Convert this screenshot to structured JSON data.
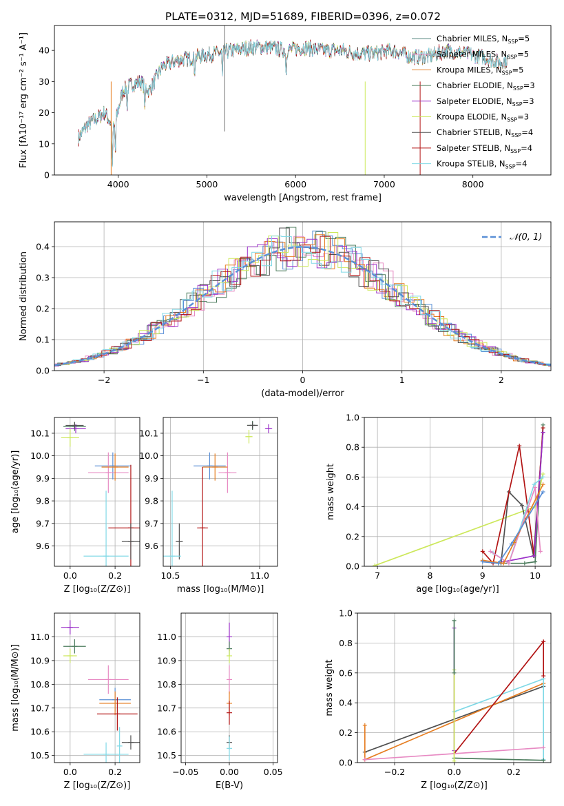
{
  "figure": {
    "title": "PLATE=0312, MJD=51689, FIBERID=0396, z=0.072"
  },
  "chart_data": [
    {
      "id": "spectrum",
      "type": "line",
      "title": "PLATE=0312, MJD=51689, FIBERID=0396, z=0.072",
      "xlabel": "wavelength [Angstrom, rest frame]",
      "ylabel": "Flux [fλ10⁻¹⁷ erg cm⁻² s⁻¹ A⁻¹]",
      "xlim": [
        3280,
        8880
      ],
      "ylim": [
        0,
        48
      ],
      "xticks": [
        4000,
        5000,
        6000,
        7000,
        8000
      ],
      "yticks": [
        0,
        10,
        20,
        30,
        40
      ],
      "grid": false,
      "legend_position": "upper-right",
      "continuum": {
        "x": [
          3550,
          3650,
          3750,
          3850,
          3950,
          4050,
          4150,
          4250,
          4350,
          4500,
          4700,
          4900,
          5100,
          5300,
          5500,
          5700,
          5900,
          6100,
          6300,
          6500,
          6700,
          6900,
          7100,
          7300,
          7500,
          7700,
          7900,
          8100,
          8300,
          8400
        ],
        "y": [
          12,
          16,
          18,
          20,
          15,
          27,
          29,
          30,
          27,
          35,
          37,
          38,
          39,
          40,
          41,
          41,
          40,
          41,
          40,
          40,
          39,
          39,
          40,
          38,
          38,
          40,
          39,
          38,
          36,
          37
        ]
      },
      "absorption_lines": [
        {
          "x": 3933,
          "depth": 15
        },
        {
          "x": 3968,
          "depth": 11
        },
        {
          "x": 4101,
          "depth": 7
        },
        {
          "x": 4300,
          "depth": 9
        },
        {
          "x": 4861,
          "depth": 5
        },
        {
          "x": 5175,
          "depth": 8
        },
        {
          "x": 5893,
          "depth": 8
        }
      ],
      "series": [
        {
          "name": "Chabrier MILES",
          "nssp": "5",
          "color": "#5a8a82"
        },
        {
          "name": "Salpeter MILES",
          "nssp": "5",
          "color": "#e78ac3"
        },
        {
          "name": "Kroupa MILES",
          "nssp": "5",
          "color": "#e67e22"
        },
        {
          "name": "Chabrier ELODIE",
          "nssp": "3",
          "color": "#4d7d5e"
        },
        {
          "name": "Salpeter ELODIE",
          "nssp": "3",
          "color": "#9b30c9"
        },
        {
          "name": "Kroupa ELODIE",
          "nssp": "3",
          "color": "#cde85c"
        },
        {
          "name": "Chabrier STELIB",
          "nssp": "4",
          "color": "#505050"
        },
        {
          "name": "Salpeter STELIB",
          "nssp": "4",
          "color": "#b21414"
        },
        {
          "name": "Kroupa STELIB",
          "nssp": "4",
          "color": "#80d9e6"
        }
      ]
    },
    {
      "id": "residuals",
      "type": "line",
      "xlabel": "(data-model)/error",
      "ylabel": "Normed distribution",
      "xlim": [
        -2.5,
        2.5
      ],
      "ylim": [
        0,
        0.48
      ],
      "xticks": [
        -2,
        -1,
        0,
        1,
        2
      ],
      "yticks": [
        0.0,
        0.1,
        0.2,
        0.3,
        0.4
      ],
      "grid": true,
      "legend_position": "upper-right",
      "reference": {
        "name": "𝒩(0, 1)",
        "color": "#5a8fd6"
      },
      "colors": [
        "#5a8fd6",
        "#e78ac3",
        "#e67e22",
        "#4d7d5e",
        "#9b30c9",
        "#cde85c",
        "#505050",
        "#b21414",
        "#80d9e6"
      ]
    },
    {
      "id": "age-vs-z",
      "type": "scatter",
      "xlabel": "Z [log₁₀(Z/Z⊙)]",
      "ylabel": "age  [log₁₀(age/yr)]",
      "xlim": [
        -0.07,
        0.31
      ],
      "ylim": [
        9.51,
        10.17
      ],
      "xticks": [
        0.0,
        0.2
      ],
      "yticks": [
        9.6,
        9.7,
        9.8,
        9.9,
        10.0,
        10.1
      ],
      "grid": true,
      "points": [
        {
          "x": 0.02,
          "y": 10.13,
          "dx": 0.05,
          "dy": 0.02,
          "color": "#4d7d5e"
        },
        {
          "x": 0.025,
          "y": 10.12,
          "dx": 0.045,
          "dy": 0.02,
          "color": "#9b30c9"
        },
        {
          "x": 0.0,
          "y": 10.08,
          "dx": 0.04,
          "dy": 0.04,
          "color": "#cde85c"
        },
        {
          "x": 0.02,
          "y": 10.135,
          "dx": 0.04,
          "dy": 0.015,
          "color": "#505050"
        },
        {
          "x": 0.19,
          "y": 9.955,
          "dx": 0.08,
          "dy": 0.06,
          "color": "#5a8fd6"
        },
        {
          "x": 0.17,
          "y": 9.925,
          "dx": 0.09,
          "dy": 0.09,
          "color": "#e78ac3"
        },
        {
          "x": 0.2,
          "y": 9.95,
          "dx": 0.06,
          "dy": 0.06,
          "color": "#e67e22"
        },
        {
          "x": 0.27,
          "y": 9.68,
          "dx": 0.1,
          "dy": 0.28,
          "color": "#b21414"
        },
        {
          "x": 0.27,
          "y": 9.62,
          "dx": 0.04,
          "dy": 0.08,
          "color": "#505050"
        },
        {
          "x": 0.16,
          "y": 9.555,
          "dx": 0.1,
          "dy": 0.29,
          "color": "#80d9e6"
        }
      ]
    },
    {
      "id": "age-vs-mass",
      "type": "scatter",
      "xlabel": "mass [log₁₀(M/M⊙)]",
      "xlim": [
        10.46,
        11.1
      ],
      "ylim": [
        9.51,
        10.17
      ],
      "xticks": [
        10.5,
        11.0
      ],
      "yticks": [
        9.6,
        9.7,
        9.8,
        9.9,
        10.0,
        10.1
      ],
      "grid": true,
      "points": [
        {
          "x": 10.96,
          "y": 10.135,
          "dx": 0.03,
          "dy": 0.02,
          "color": "#4d7d5e"
        },
        {
          "x": 11.05,
          "y": 10.12,
          "dx": 0.02,
          "dy": 0.02,
          "color": "#9b30c9"
        },
        {
          "x": 10.94,
          "y": 10.085,
          "dx": 0.02,
          "dy": 0.03,
          "color": "#cde85c"
        },
        {
          "x": 10.96,
          "y": 10.135,
          "dx": 0.03,
          "dy": 0.015,
          "color": "#505050"
        },
        {
          "x": 10.72,
          "y": 9.955,
          "dx": 0.09,
          "dy": 0.06,
          "color": "#5a8fd6"
        },
        {
          "x": 10.82,
          "y": 9.925,
          "dx": 0.05,
          "dy": 0.09,
          "color": "#e78ac3"
        },
        {
          "x": 10.75,
          "y": 9.95,
          "dx": 0.07,
          "dy": 0.06,
          "color": "#e67e22"
        },
        {
          "x": 10.68,
          "y": 9.68,
          "dx": 0.03,
          "dy": 0.27,
          "color": "#b21414"
        },
        {
          "x": 10.55,
          "y": 9.62,
          "dx": 0.02,
          "dy": 0.08,
          "color": "#505050"
        },
        {
          "x": 10.51,
          "y": 9.555,
          "dx": 0.05,
          "dy": 0.29,
          "color": "#80d9e6"
        }
      ]
    },
    {
      "id": "mass-weight-vs-age",
      "type": "line",
      "xlabel": "age  [log₁₀(age/yr)]",
      "ylabel": "mass weight",
      "xlim": [
        6.75,
        10.3
      ],
      "ylim": [
        0,
        1.0
      ],
      "xticks": [
        7,
        8,
        9,
        10
      ],
      "yticks": [
        0.0,
        0.2,
        0.4,
        0.6,
        0.8,
        1.0
      ],
      "grid": true,
      "series": [
        {
          "color": "#cde85c",
          "points": [
            [
              6.95,
              0.005
            ],
            [
              10.0,
              0.4
            ],
            [
              10.15,
              0.62
            ]
          ]
        },
        {
          "color": "#4d7d5e",
          "points": [
            [
              9.3,
              0.02
            ],
            [
              9.8,
              0.02
            ],
            [
              10.0,
              0.03
            ],
            [
              10.15,
              0.95
            ]
          ]
        },
        {
          "color": "#505050",
          "points": [
            [
              9.35,
              0.02
            ],
            [
              9.5,
              0.5
            ],
            [
              9.75,
              0.41
            ],
            [
              9.97,
              0.07
            ],
            [
              10.15,
              0.9
            ]
          ]
        },
        {
          "color": "#b21414",
          "points": [
            [
              9.0,
              0.1
            ],
            [
              9.2,
              0.02
            ],
            [
              9.7,
              0.81
            ],
            [
              9.98,
              0.07
            ],
            [
              10.15,
              0.93
            ]
          ]
        },
        {
          "color": "#9b30c9",
          "points": [
            [
              9.4,
              0.03
            ],
            [
              9.98,
              0.07
            ],
            [
              10.15,
              0.9
            ]
          ]
        },
        {
          "color": "#80d9e6",
          "points": [
            [
              9.2,
              0.09
            ],
            [
              9.5,
              0.02
            ],
            [
              9.98,
              0.55
            ],
            [
              10.15,
              0.6
            ]
          ]
        },
        {
          "color": "#e78ac3",
          "points": [
            [
              9.15,
              0.1
            ],
            [
              9.5,
              0.02
            ],
            [
              10.0,
              0.53
            ],
            [
              10.1,
              0.1
            ]
          ]
        },
        {
          "color": "#e67e22",
          "points": [
            [
              9.0,
              0.04
            ],
            [
              9.4,
              0.02
            ],
            [
              9.6,
              0.16
            ],
            [
              10.15,
              0.55
            ]
          ]
        },
        {
          "color": "#5a8fd6",
          "points": [
            [
              9.0,
              0.03
            ],
            [
              9.3,
              0.02
            ],
            [
              9.55,
              0.15
            ],
            [
              10.15,
              0.5
            ]
          ]
        }
      ]
    },
    {
      "id": "mass-vs-z",
      "type": "scatter",
      "xlabel": "Z [log₁₀(Z/Z⊙)]",
      "ylabel": "mass [log₁₀(M/M⊙)]",
      "xlim": [
        -0.07,
        0.31
      ],
      "ylim": [
        10.47,
        11.1
      ],
      "xticks": [
        0.0,
        0.2
      ],
      "yticks": [
        10.5,
        10.6,
        10.7,
        10.8,
        10.9,
        11.0
      ],
      "grid": true,
      "points": [
        {
          "x": 0.0,
          "y": 11.04,
          "dx": 0.04,
          "dy": 0.03,
          "color": "#9b30c9"
        },
        {
          "x": 0.02,
          "y": 10.96,
          "dx": 0.05,
          "dy": 0.03,
          "color": "#4d7d5e"
        },
        {
          "x": 0.0,
          "y": 10.92,
          "dx": 0.03,
          "dy": 0.03,
          "color": "#cde85c"
        },
        {
          "x": 0.17,
          "y": 10.82,
          "dx": 0.09,
          "dy": 0.06,
          "color": "#e78ac3"
        },
        {
          "x": 0.2,
          "y": 10.735,
          "dx": 0.07,
          "dy": 0.05,
          "color": "#5a8fd6"
        },
        {
          "x": 0.2,
          "y": 10.72,
          "dx": 0.07,
          "dy": 0.05,
          "color": "#e67e22"
        },
        {
          "x": 0.21,
          "y": 10.675,
          "dx": 0.09,
          "dy": 0.07,
          "color": "#b21414"
        },
        {
          "x": 0.27,
          "y": 10.555,
          "dx": 0.04,
          "dy": 0.03,
          "color": "#505050"
        },
        {
          "x": 0.16,
          "y": 10.505,
          "dx": 0.1,
          "dy": 0.05,
          "color": "#80d9e6"
        },
        {
          "x": 0.22,
          "y": 10.54,
          "dx": 0.005,
          "dy": 0.08,
          "color": "#80d9e6"
        }
      ]
    },
    {
      "id": "mass-vs-ebv",
      "type": "scatter",
      "xlabel": "E(B-V)",
      "xlim": [
        -0.055,
        0.055
      ],
      "ylim": [
        10.47,
        11.1
      ],
      "xticks": [
        -0.05,
        0.0,
        0.05
      ],
      "yticks": [
        10.5,
        10.6,
        10.7,
        10.8,
        10.9,
        11.0
      ],
      "grid": true,
      "points": [
        {
          "x": 0.0,
          "y": 11.0,
          "dx": 0,
          "dy": 0.06,
          "color": "#9b30c9"
        },
        {
          "x": 0.0,
          "y": 10.95,
          "dx": 0,
          "dy": 0.03,
          "color": "#4d7d5e"
        },
        {
          "x": 0.0,
          "y": 10.92,
          "dx": 0,
          "dy": 0.03,
          "color": "#cde85c"
        },
        {
          "x": 0.0,
          "y": 10.82,
          "dx": 0,
          "dy": 0.06,
          "color": "#e78ac3"
        },
        {
          "x": 0.0,
          "y": 10.72,
          "dx": 0,
          "dy": 0.05,
          "color": "#e67e22"
        },
        {
          "x": 0.0,
          "y": 10.68,
          "dx": 0,
          "dy": 0.05,
          "color": "#b21414"
        },
        {
          "x": 0.0,
          "y": 10.555,
          "dx": 0,
          "dy": 0.03,
          "color": "#505050"
        },
        {
          "x": 0.0,
          "y": 10.53,
          "dx": 0,
          "dy": 0.05,
          "color": "#80d9e6"
        }
      ]
    },
    {
      "id": "mass-weight-vs-z",
      "type": "line",
      "xlabel": "Z [log₁₀(Z/Z⊙)]",
      "ylabel": "mass weight",
      "xlim": [
        -0.325,
        0.325
      ],
      "ylim": [
        0,
        1.0
      ],
      "xticks": [
        -0.2,
        0.0,
        0.2
      ],
      "yticks": [
        0.0,
        0.2,
        0.4,
        0.6,
        0.8,
        1.0
      ],
      "grid": true,
      "series": [
        {
          "color": "#505050",
          "points": [
            [
              -0.3,
              0.07
            ],
            [
              0.3,
              0.51
            ]
          ]
        },
        {
          "color": "#e67e22",
          "points": [
            [
              -0.3,
              0.02
            ],
            [
              -0.3,
              0.25
            ],
            [
              -0.3,
              0.02
            ],
            [
              0.3,
              0.53
            ]
          ]
        },
        {
          "color": "#80d9e6",
          "points": [
            [
              0.0,
              0.34
            ],
            [
              0.3,
              0.56
            ],
            [
              0.3,
              0.02
            ]
          ]
        },
        {
          "color": "#b21414",
          "points": [
            [
              0.0,
              0.06
            ],
            [
              0.3,
              0.81
            ],
            [
              0.3,
              0.58
            ]
          ]
        },
        {
          "color": "#e78ac3",
          "points": [
            [
              -0.3,
              0.02
            ],
            [
              0.3,
              0.1
            ]
          ]
        },
        {
          "color": "#4d7d5e",
          "points": [
            [
              0.0,
              0.03
            ],
            [
              0.3,
              0.015
            ]
          ]
        },
        {
          "color": "#9b30c9",
          "points": [
            [
              0.0,
              0.9
            ],
            [
              0.0,
              0.08
            ]
          ]
        },
        {
          "color": "#cde85c",
          "points": [
            [
              0.0,
              0.62
            ],
            [
              0.0,
              0.01
            ]
          ]
        },
        {
          "color": "#4d7d5e",
          "points": [
            [
              0.0,
              0.95
            ],
            [
              0.0,
              0.6
            ]
          ]
        }
      ]
    }
  ]
}
